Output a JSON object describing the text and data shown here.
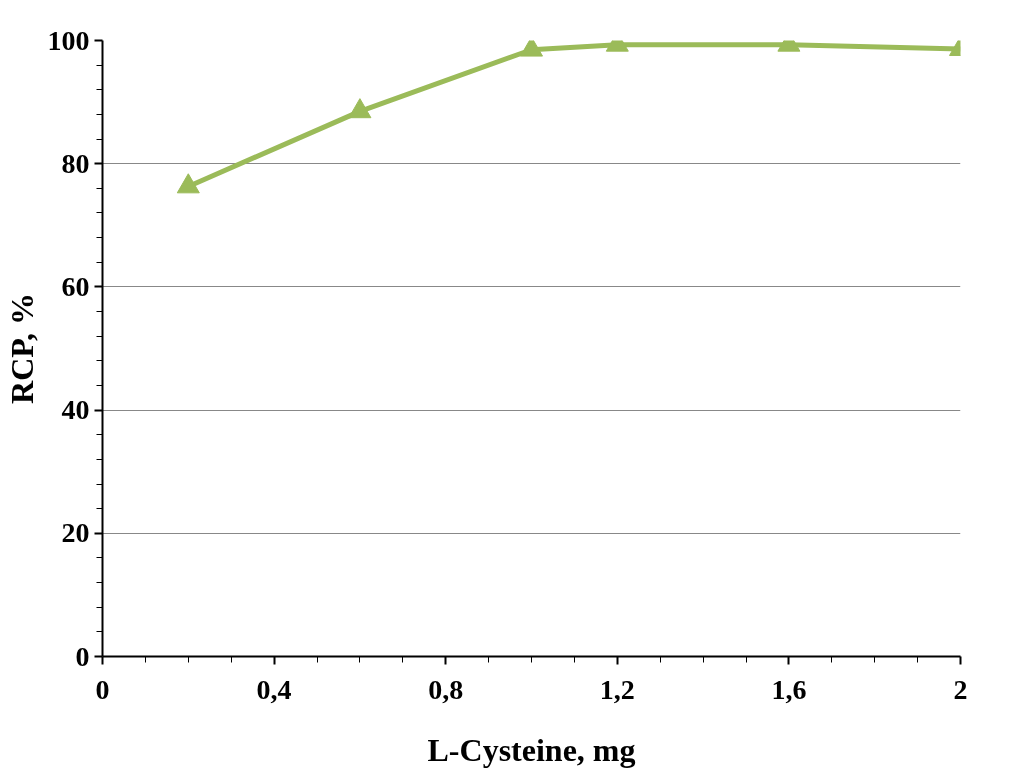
{
  "chart_data": {
    "type": "line",
    "xlabel": "L-Cysteine, mg",
    "ylabel": "RCP, %",
    "x": [
      0.2,
      0.6,
      1.0,
      1.2,
      1.6,
      2.0
    ],
    "series": [
      {
        "color": "#9bbb59",
        "values": [
          76.3,
          88.5,
          98.5,
          99.3,
          99.3,
          98.6
        ]
      }
    ],
    "xlim": [
      0,
      2
    ],
    "ylim": [
      0,
      100
    ],
    "xticks": [
      {
        "value": 0,
        "label": "0"
      },
      {
        "value": 0.4,
        "label": "0,4"
      },
      {
        "value": 0.8,
        "label": "0,8"
      },
      {
        "value": 1.2,
        "label": "1,2"
      },
      {
        "value": 1.6,
        "label": "1,6"
      },
      {
        "value": 2,
        "label": "2"
      }
    ],
    "yticks": [
      0,
      20,
      40,
      60,
      80,
      100
    ],
    "grid": "y",
    "marker": "triangle",
    "line_style": "solid"
  }
}
